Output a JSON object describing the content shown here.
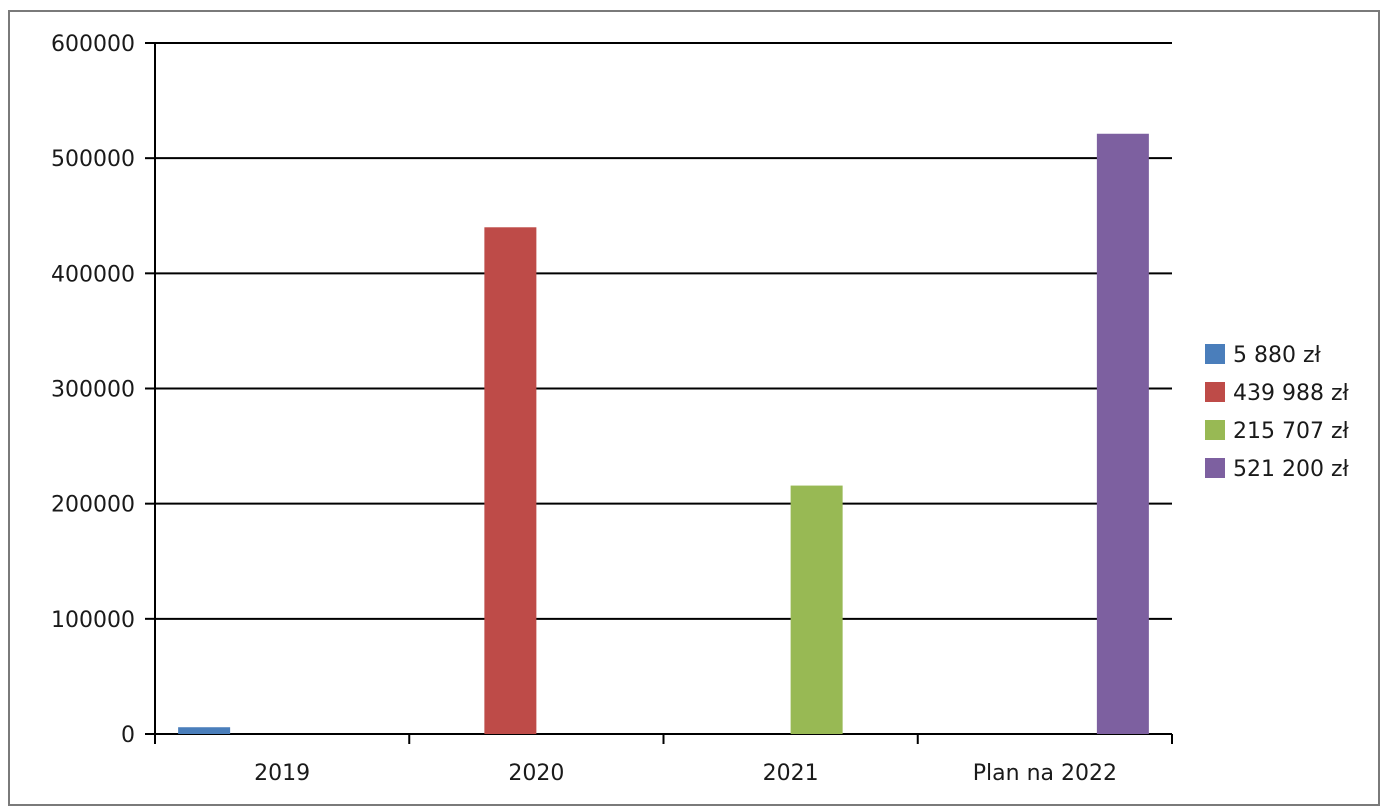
{
  "chart_data": {
    "type": "bar",
    "categories": [
      "2019",
      "2020",
      "2021",
      "Plan na 2022"
    ],
    "series": [
      {
        "name": "5 880 zł",
        "color": "#4a7ebb",
        "values": [
          5880,
          0,
          0,
          0
        ]
      },
      {
        "name": "439 988 zł",
        "color": "#be4b48",
        "values": [
          0,
          439988,
          0,
          0
        ]
      },
      {
        "name": "215 707 zł",
        "color": "#98b954",
        "values": [
          0,
          0,
          215707,
          0
        ]
      },
      {
        "name": "521 200 zł",
        "color": "#7d60a0",
        "values": [
          0,
          0,
          0,
          521200
        ]
      }
    ],
    "ylim": [
      0,
      600000
    ],
    "yticks": [
      "0",
      "100000",
      "200000",
      "300000",
      "400000",
      "500000",
      "600000"
    ],
    "grid": true,
    "legend_position": "right"
  }
}
